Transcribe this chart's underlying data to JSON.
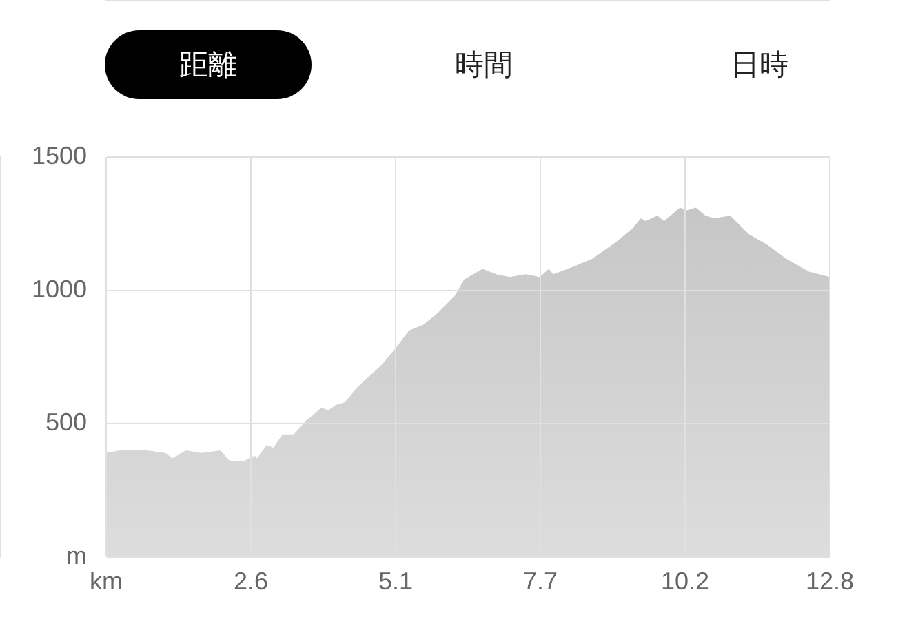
{
  "chart_data": {
    "type": "area",
    "annotations": [
      "距離",
      "時間",
      "日時"
    ],
    "x": [
      0,
      0.24,
      0.72,
      1.05,
      1.17,
      1.41,
      1.7,
      2.02,
      2.19,
      2.43,
      2.63,
      2.67,
      2.84,
      2.96,
      3.12,
      3.32,
      3.53,
      3.81,
      3.93,
      4.06,
      4.22,
      4.46,
      4.87,
      5.11,
      5.36,
      5.6,
      5.84,
      6.17,
      6.33,
      6.41,
      6.66,
      6.9,
      7.14,
      7.42,
      7.67,
      7.83,
      7.91,
      8.28,
      8.61,
      9.01,
      9.3,
      9.46,
      9.54,
      9.75,
      9.87,
      10.15,
      10.27,
      10.43,
      10.6,
      10.76,
      11.04,
      11.37,
      11.7,
      12.02,
      12.43,
      12.8
    ],
    "series": [
      {
        "color": "#bbbbbb",
        "values": [
          390,
          400,
          400,
          390,
          370,
          400,
          390,
          400,
          360,
          360,
          380,
          370,
          420,
          410,
          460,
          460,
          510,
          560,
          550,
          570,
          580,
          640,
          720,
          780,
          850,
          870,
          910,
          980,
          1040,
          1050,
          1080,
          1060,
          1050,
          1060,
          1050,
          1080,
          1060,
          1090,
          1120,
          1180,
          1230,
          1270,
          1260,
          1280,
          1260,
          1310,
          1300,
          1310,
          1280,
          1270,
          1280,
          1210,
          1170,
          1120,
          1070,
          1050
        ]
      }
    ],
    "xlim": [
      0,
      12.8
    ],
    "xticks": [
      {
        "value": 0,
        "label": "km"
      },
      {
        "value": 2.56,
        "label": "2.6"
      },
      {
        "value": 5.12,
        "label": "5.1"
      },
      {
        "value": 7.68,
        "label": "7.7"
      },
      {
        "value": 10.24,
        "label": "10.2"
      },
      {
        "value": 12.8,
        "label": "12.8"
      }
    ],
    "ylim": [
      0,
      1500
    ],
    "yticks": [
      {
        "value": 0,
        "label": "m"
      },
      500,
      1000,
      1500
    ],
    "grid": true
  }
}
